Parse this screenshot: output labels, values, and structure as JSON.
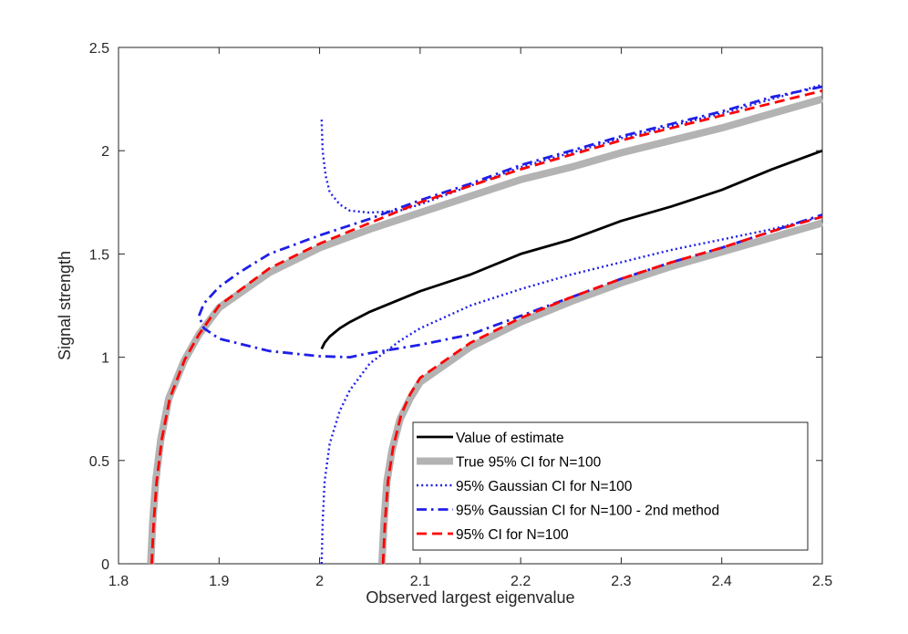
{
  "chart_data": {
    "type": "line",
    "title": "",
    "xlabel": "Observed largest eigenvalue",
    "ylabel": "Signal strength",
    "xlim": [
      1.8,
      2.5
    ],
    "ylim": [
      0,
      2.5
    ],
    "xticks": [
      "1.8",
      "1.9",
      "2",
      "2.1",
      "2.2",
      "2.3",
      "2.4",
      "2.5"
    ],
    "yticks": [
      "0",
      "0.5",
      "1",
      "1.5",
      "2",
      "2.5"
    ],
    "grid": false,
    "legend_position": "bottom-right",
    "series": [
      {
        "name": "Value of estimate",
        "color": "#000000",
        "style": "solid",
        "points": [
          [
            2.002,
            1.04
          ],
          [
            2.005,
            1.07
          ],
          [
            2.01,
            1.1
          ],
          [
            2.02,
            1.14
          ],
          [
            2.03,
            1.17
          ],
          [
            2.05,
            1.22
          ],
          [
            2.1,
            1.32
          ],
          [
            2.15,
            1.4
          ],
          [
            2.2,
            1.5
          ],
          [
            2.25,
            1.57
          ],
          [
            2.3,
            1.66
          ],
          [
            2.35,
            1.73
          ],
          [
            2.4,
            1.81
          ],
          [
            2.45,
            1.91
          ],
          [
            2.5,
            2.0
          ]
        ]
      },
      {
        "name": "True 95% CI for N=100",
        "color": "#b3b3b3",
        "style": "thick",
        "segments": [
          [
            [
              1.832,
              0.0
            ],
            [
              1.834,
              0.2
            ],
            [
              1.837,
              0.4
            ],
            [
              1.842,
              0.6
            ],
            [
              1.85,
              0.8
            ],
            [
              1.865,
              0.98
            ],
            [
              1.88,
              1.11
            ],
            [
              1.9,
              1.24
            ],
            [
              1.95,
              1.41
            ],
            [
              2.0,
              1.53
            ],
            [
              2.05,
              1.62
            ],
            [
              2.1,
              1.7
            ],
            [
              2.15,
              1.78
            ],
            [
              2.2,
              1.86
            ],
            [
              2.25,
              1.92
            ],
            [
              2.3,
              1.99
            ],
            [
              2.35,
              2.05
            ],
            [
              2.4,
              2.11
            ],
            [
              2.45,
              2.18
            ],
            [
              2.5,
              2.25
            ]
          ],
          [
            [
              2.062,
              0.0
            ],
            [
              2.064,
              0.2
            ],
            [
              2.067,
              0.4
            ],
            [
              2.072,
              0.55
            ],
            [
              2.08,
              0.7
            ],
            [
              2.09,
              0.8
            ],
            [
              2.1,
              0.88
            ],
            [
              2.15,
              1.05
            ],
            [
              2.2,
              1.17
            ],
            [
              2.25,
              1.27
            ],
            [
              2.3,
              1.36
            ],
            [
              2.35,
              1.44
            ],
            [
              2.4,
              1.51
            ],
            [
              2.45,
              1.58
            ],
            [
              2.5,
              1.65
            ]
          ]
        ]
      },
      {
        "name": "95% Gaussian CI for N=100",
        "color": "#1f1fe6",
        "style": "dotted",
        "segments": [
          [
            [
              2.002,
              2.15
            ],
            [
              2.003,
              2.0
            ],
            [
              2.006,
              1.88
            ],
            [
              2.01,
              1.8
            ],
            [
              2.02,
              1.74
            ],
            [
              2.03,
              1.71
            ],
            [
              2.05,
              1.7
            ],
            [
              2.08,
              1.71
            ],
            [
              2.1,
              1.74
            ],
            [
              2.15,
              1.83
            ],
            [
              2.2,
              1.92
            ],
            [
              2.25,
              1.99
            ],
            [
              2.3,
              2.06
            ],
            [
              2.35,
              2.12
            ],
            [
              2.4,
              2.18
            ],
            [
              2.45,
              2.25
            ],
            [
              2.5,
              2.32
            ]
          ],
          [
            [
              2.002,
              0.0
            ],
            [
              2.003,
              0.2
            ],
            [
              2.005,
              0.4
            ],
            [
              2.01,
              0.58
            ],
            [
              2.02,
              0.74
            ],
            [
              2.03,
              0.84
            ],
            [
              2.05,
              0.97
            ],
            [
              2.08,
              1.08
            ],
            [
              2.1,
              1.14
            ],
            [
              2.15,
              1.25
            ],
            [
              2.2,
              1.33
            ],
            [
              2.25,
              1.4
            ],
            [
              2.3,
              1.46
            ],
            [
              2.35,
              1.52
            ],
            [
              2.4,
              1.57
            ],
            [
              2.45,
              1.62
            ],
            [
              2.5,
              1.68
            ]
          ]
        ]
      },
      {
        "name": "95% Gaussian CI for N=100 - 2nd method",
        "color": "#1f1fe6",
        "style": "dashdot",
        "segments": [
          [
            [
              2.5,
              2.31
            ],
            [
              2.45,
              2.26
            ],
            [
              2.4,
              2.19
            ],
            [
              2.35,
              2.13
            ],
            [
              2.3,
              2.07
            ],
            [
              2.25,
              2.0
            ],
            [
              2.2,
              1.93
            ],
            [
              2.15,
              1.84
            ],
            [
              2.1,
              1.76
            ],
            [
              2.05,
              1.67
            ],
            [
              2.0,
              1.59
            ],
            [
              1.95,
              1.5
            ],
            [
              1.92,
              1.41
            ],
            [
              1.9,
              1.34
            ],
            [
              1.885,
              1.26
            ],
            [
              1.88,
              1.2
            ],
            [
              1.885,
              1.14
            ],
            [
              1.9,
              1.09
            ],
            [
              1.95,
              1.03
            ],
            [
              2.0,
              1.005
            ],
            [
              2.03,
              1.0
            ],
            [
              2.05,
              1.02
            ],
            [
              2.1,
              1.06
            ],
            [
              2.15,
              1.11
            ],
            [
              2.2,
              1.2
            ],
            [
              2.25,
              1.29
            ],
            [
              2.3,
              1.38
            ],
            [
              2.35,
              1.46
            ],
            [
              2.4,
              1.53
            ],
            [
              2.45,
              1.61
            ],
            [
              2.5,
              1.69
            ]
          ]
        ]
      },
      {
        "name": "95% CI for N=100",
        "color": "#ff0000",
        "style": "dashed",
        "segments": [
          [
            [
              1.833,
              0.0
            ],
            [
              1.835,
              0.2
            ],
            [
              1.838,
              0.4
            ],
            [
              1.843,
              0.6
            ],
            [
              1.851,
              0.8
            ],
            [
              1.866,
              0.99
            ],
            [
              1.88,
              1.11
            ],
            [
              1.9,
              1.25
            ],
            [
              1.95,
              1.43
            ],
            [
              2.0,
              1.55
            ],
            [
              2.05,
              1.65
            ],
            [
              2.1,
              1.75
            ],
            [
              2.15,
              1.83
            ],
            [
              2.2,
              1.91
            ],
            [
              2.25,
              1.98
            ],
            [
              2.3,
              2.05
            ],
            [
              2.35,
              2.11
            ],
            [
              2.4,
              2.17
            ],
            [
              2.45,
              2.23
            ],
            [
              2.5,
              2.29
            ]
          ],
          [
            [
              2.063,
              0.0
            ],
            [
              2.065,
              0.2
            ],
            [
              2.068,
              0.4
            ],
            [
              2.073,
              0.56
            ],
            [
              2.081,
              0.72
            ],
            [
              2.09,
              0.82
            ],
            [
              2.1,
              0.9
            ],
            [
              2.15,
              1.07
            ],
            [
              2.2,
              1.19
            ],
            [
              2.25,
              1.29
            ],
            [
              2.3,
              1.38
            ],
            [
              2.35,
              1.46
            ],
            [
              2.4,
              1.53
            ],
            [
              2.45,
              1.61
            ],
            [
              2.5,
              1.68
            ]
          ]
        ]
      }
    ]
  }
}
